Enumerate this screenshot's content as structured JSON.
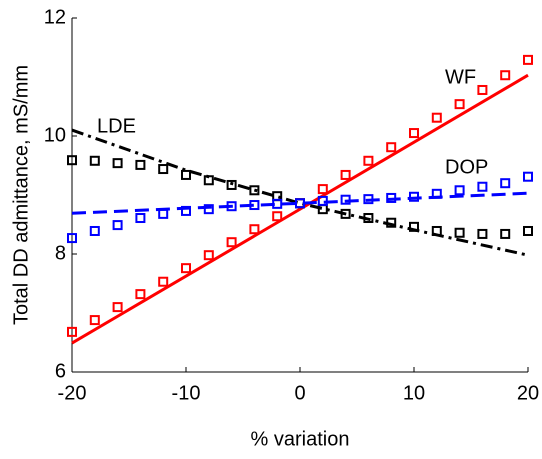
{
  "chart_data": {
    "type": "line",
    "xlabel": "% variation",
    "ylabel": "Total DD admittance, mS/mm",
    "xlim": [
      -20,
      20
    ],
    "ylim": [
      6,
      12
    ],
    "xticks": [
      -20,
      -10,
      0,
      10,
      20
    ],
    "yticks": [
      6,
      8,
      10,
      12
    ],
    "x": [
      -20,
      -18,
      -16,
      -14,
      -12,
      -10,
      -8,
      -6,
      -4,
      -2,
      0,
      2,
      4,
      6,
      8,
      10,
      12,
      14,
      16,
      18,
      20
    ],
    "series": [
      {
        "name": "WF",
        "color": "#ff0000",
        "dash": "solid",
        "values": [
          6.68,
          6.88,
          7.1,
          7.32,
          7.53,
          7.76,
          7.98,
          8.2,
          8.42,
          8.64,
          8.86,
          9.1,
          9.34,
          9.58,
          9.81,
          10.05,
          10.31,
          10.54,
          10.78,
          11.03,
          11.29
        ],
        "fit_x": [
          -20,
          20
        ],
        "fit_values": [
          6.49,
          11.03
        ]
      },
      {
        "name": "LDE",
        "color": "#000000",
        "dash": "dashdot",
        "values": [
          9.59,
          9.58,
          9.54,
          9.51,
          9.44,
          9.34,
          9.25,
          9.17,
          9.08,
          8.98,
          8.86,
          8.76,
          8.68,
          8.61,
          8.53,
          8.46,
          8.39,
          8.36,
          8.34,
          8.34,
          8.39
        ],
        "fit_x": [
          -20,
          -10,
          0,
          10,
          20
        ],
        "fit_values": [
          10.1,
          9.42,
          8.86,
          8.41,
          7.98
        ]
      },
      {
        "name": "DOP",
        "color": "#0000ff",
        "dash": "dashed",
        "values": [
          8.27,
          8.39,
          8.49,
          8.61,
          8.68,
          8.73,
          8.76,
          8.81,
          8.83,
          8.85,
          8.86,
          8.9,
          8.92,
          8.93,
          8.95,
          8.97,
          9.02,
          9.08,
          9.14,
          9.2,
          9.31
        ],
        "fit_x": [
          -20,
          20
        ],
        "fit_values": [
          8.69,
          9.03
        ]
      }
    ]
  }
}
